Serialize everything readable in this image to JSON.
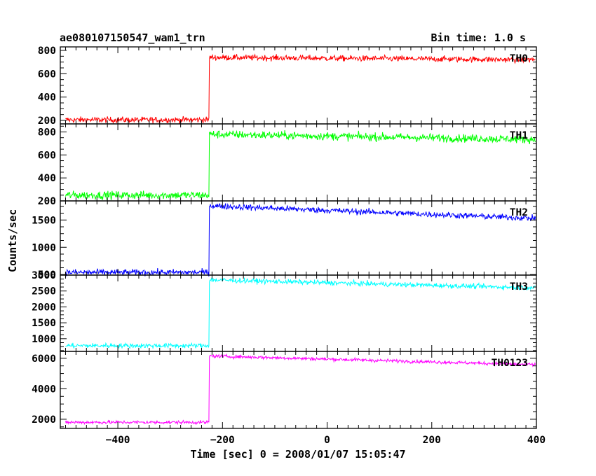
{
  "header": {
    "title_left": "ae080107150547_wam1_trn",
    "title_right": "Bin time: 1.0 s"
  },
  "axes": {
    "xlabel": "Time [sec] 0 = 2008/01/07 15:05:47",
    "ylabel": "Counts/sec"
  },
  "chart_data": {
    "type": "line",
    "x_range": [
      -510,
      400
    ],
    "x_ticks": [
      -400,
      -200,
      0,
      200,
      400
    ],
    "x_tick_labels": [
      "−400",
      "−200",
      "0",
      "200",
      "400"
    ],
    "event_time": -225,
    "data_start": -500,
    "data_end": 398,
    "grid": false,
    "panels": [
      {
        "name": "TH0",
        "color": "#ff0000",
        "ylim": [
          170,
          830
        ],
        "y_ticks": [
          200,
          400,
          600,
          800
        ],
        "y_tick_labels": [
          "200",
          "400",
          "600",
          "800"
        ],
        "before": 205,
        "after_start": 740,
        "after_end": 720,
        "noise": 18
      },
      {
        "name": "TH1",
        "color": "#00ff00",
        "ylim": [
          200,
          870
        ],
        "y_ticks": [
          200,
          400,
          600,
          800
        ],
        "y_tick_labels": [
          "200",
          "400",
          "600",
          "800"
        ],
        "before": 250,
        "after_start": 780,
        "after_end": 735,
        "noise": 25
      },
      {
        "name": "TH2",
        "color": "#0000ff",
        "ylim": [
          490,
          1850
        ],
        "y_ticks": [
          500,
          1000,
          1500
        ],
        "y_tick_labels": [
          "500",
          "1000",
          "1500"
        ],
        "before": 540,
        "after_start": 1760,
        "after_end": 1530,
        "noise": 40
      },
      {
        "name": "TH3",
        "color": "#00ffff",
        "ylim": [
          600,
          3000
        ],
        "y_ticks": [
          1000,
          1500,
          2000,
          2500,
          3000
        ],
        "y_tick_labels": [
          "1000",
          "1500",
          "2000",
          "2500",
          "3000"
        ],
        "before": 780,
        "after_start": 2850,
        "after_end": 2600,
        "noise": 55
      },
      {
        "name": "TH0123",
        "color": "#ff00ff",
        "ylim": [
          1400,
          6450
        ],
        "y_ticks": [
          2000,
          4000,
          6000
        ],
        "y_tick_labels": [
          "2000",
          "4000",
          "6000"
        ],
        "before": 1800,
        "after_start": 6150,
        "after_end": 5580,
        "noise": 80
      }
    ]
  }
}
